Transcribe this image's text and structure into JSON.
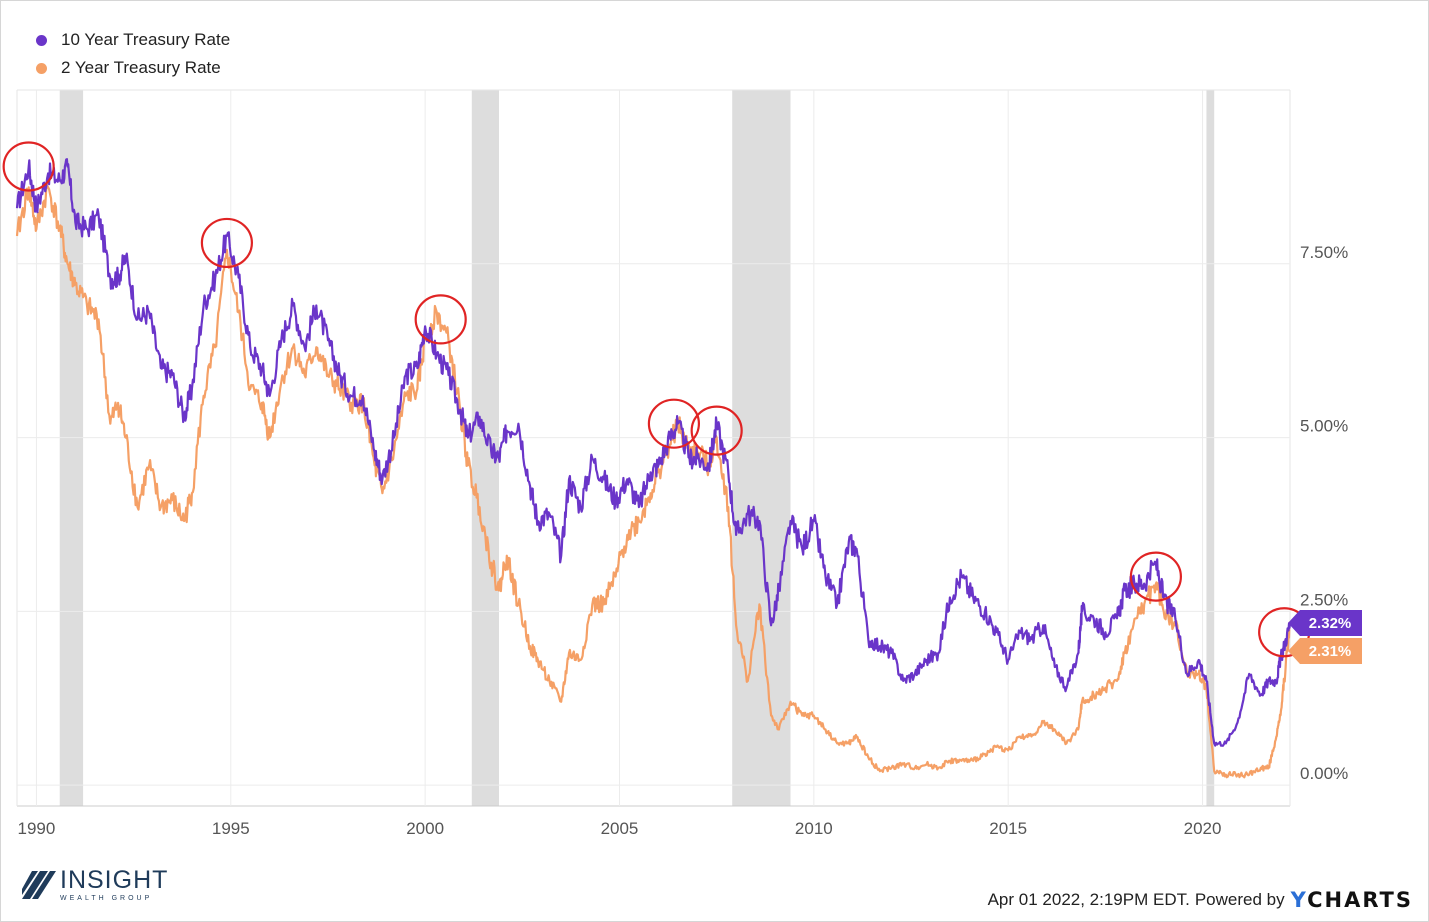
{
  "chart_data": {
    "type": "line",
    "title": "",
    "xlabel": "",
    "ylabel": "",
    "x_range": [
      1989.5,
      2022.25
    ],
    "ylim": [
      -0.3,
      10.0
    ],
    "y_ticks": [
      0,
      2.5,
      5,
      7.5
    ],
    "y_tick_labels": [
      "0.00%",
      "2.50%",
      "5.00%",
      "7.50%"
    ],
    "x_ticks": [
      1990,
      1995,
      2000,
      2005,
      2010,
      2015,
      2020
    ],
    "x_tick_labels": [
      "1990",
      "1995",
      "2000",
      "2005",
      "2010",
      "2015",
      "2020"
    ],
    "grid": true,
    "legend_position": "top-left",
    "recessions": [
      [
        1990.6,
        1991.2
      ],
      [
        2001.2,
        2001.9
      ],
      [
        2007.9,
        2009.4
      ],
      [
        2020.1,
        2020.3
      ]
    ],
    "series": [
      {
        "name": "10 Year Treasury Rate",
        "color": "#6a35c9",
        "last_label": "2.32%",
        "points": [
          [
            1989.5,
            8.3
          ],
          [
            1989.8,
            8.9
          ],
          [
            1990.0,
            8.3
          ],
          [
            1990.3,
            8.8
          ],
          [
            1990.6,
            8.7
          ],
          [
            1990.8,
            8.9
          ],
          [
            1991.0,
            8.1
          ],
          [
            1991.3,
            8.0
          ],
          [
            1991.6,
            8.2
          ],
          [
            1991.9,
            7.3
          ],
          [
            1992.1,
            7.3
          ],
          [
            1992.3,
            7.6
          ],
          [
            1992.6,
            6.7
          ],
          [
            1992.9,
            6.8
          ],
          [
            1993.2,
            6.0
          ],
          [
            1993.5,
            5.9
          ],
          [
            1993.8,
            5.3
          ],
          [
            1994.0,
            5.7
          ],
          [
            1994.3,
            6.9
          ],
          [
            1994.6,
            7.3
          ],
          [
            1994.9,
            7.9
          ],
          [
            1995.2,
            7.3
          ],
          [
            1995.5,
            6.3
          ],
          [
            1995.8,
            6.0
          ],
          [
            1996.0,
            5.6
          ],
          [
            1996.3,
            6.4
          ],
          [
            1996.6,
            6.9
          ],
          [
            1996.9,
            6.3
          ],
          [
            1997.2,
            6.9
          ],
          [
            1997.5,
            6.4
          ],
          [
            1997.8,
            5.9
          ],
          [
            1998.1,
            5.6
          ],
          [
            1998.4,
            5.6
          ],
          [
            1998.7,
            4.8
          ],
          [
            1998.9,
            4.4
          ],
          [
            1999.2,
            5.0
          ],
          [
            1999.5,
            5.9
          ],
          [
            1999.8,
            6.0
          ],
          [
            2000.0,
            6.6
          ],
          [
            2000.3,
            6.2
          ],
          [
            2000.6,
            5.9
          ],
          [
            2000.9,
            5.4
          ],
          [
            2001.1,
            5.0
          ],
          [
            2001.4,
            5.3
          ],
          [
            2001.7,
            4.8
          ],
          [
            2001.9,
            4.7
          ],
          [
            2002.1,
            5.1
          ],
          [
            2002.4,
            5.2
          ],
          [
            2002.7,
            4.3
          ],
          [
            2002.9,
            3.8
          ],
          [
            2003.2,
            3.9
          ],
          [
            2003.5,
            3.3
          ],
          [
            2003.7,
            4.4
          ],
          [
            2004.0,
            4.0
          ],
          [
            2004.3,
            4.7
          ],
          [
            2004.6,
            4.4
          ],
          [
            2004.9,
            4.1
          ],
          [
            2005.2,
            4.4
          ],
          [
            2005.5,
            4.0
          ],
          [
            2005.8,
            4.5
          ],
          [
            2006.0,
            4.6
          ],
          [
            2006.3,
            5.0
          ],
          [
            2006.5,
            5.2
          ],
          [
            2006.8,
            4.7
          ],
          [
            2007.0,
            4.7
          ],
          [
            2007.3,
            4.6
          ],
          [
            2007.5,
            5.2
          ],
          [
            2007.8,
            4.5
          ],
          [
            2008.0,
            3.6
          ],
          [
            2008.3,
            3.9
          ],
          [
            2008.6,
            3.8
          ],
          [
            2008.9,
            2.3
          ],
          [
            2009.1,
            2.8
          ],
          [
            2009.4,
            3.8
          ],
          [
            2009.7,
            3.4
          ],
          [
            2010.0,
            3.8
          ],
          [
            2010.3,
            3.0
          ],
          [
            2010.6,
            2.6
          ],
          [
            2010.9,
            3.5
          ],
          [
            2011.1,
            3.4
          ],
          [
            2011.4,
            2.1
          ],
          [
            2011.7,
            2.0
          ],
          [
            2012.0,
            1.9
          ],
          [
            2012.3,
            1.5
          ],
          [
            2012.6,
            1.6
          ],
          [
            2012.9,
            1.8
          ],
          [
            2013.2,
            1.9
          ],
          [
            2013.5,
            2.7
          ],
          [
            2013.8,
            3.0
          ],
          [
            2014.1,
            2.7
          ],
          [
            2014.4,
            2.5
          ],
          [
            2014.7,
            2.2
          ],
          [
            2015.0,
            1.8
          ],
          [
            2015.3,
            2.2
          ],
          [
            2015.6,
            2.1
          ],
          [
            2015.9,
            2.3
          ],
          [
            2016.2,
            1.7
          ],
          [
            2016.5,
            1.4
          ],
          [
            2016.8,
            1.9
          ],
          [
            2016.9,
            2.5
          ],
          [
            2017.2,
            2.4
          ],
          [
            2017.5,
            2.2
          ],
          [
            2017.8,
            2.4
          ],
          [
            2018.0,
            2.8
          ],
          [
            2018.3,
            2.9
          ],
          [
            2018.5,
            2.9
          ],
          [
            2018.8,
            3.2
          ],
          [
            2019.0,
            2.7
          ],
          [
            2019.3,
            2.4
          ],
          [
            2019.6,
            1.6
          ],
          [
            2019.9,
            1.8
          ],
          [
            2020.1,
            1.5
          ],
          [
            2020.3,
            0.6
          ],
          [
            2020.6,
            0.6
          ],
          [
            2020.9,
            0.9
          ],
          [
            2021.2,
            1.6
          ],
          [
            2021.5,
            1.3
          ],
          [
            2021.7,
            1.5
          ],
          [
            2021.9,
            1.5
          ],
          [
            2022.0,
            1.8
          ],
          [
            2022.1,
            2.0
          ],
          [
            2022.25,
            2.32
          ]
        ]
      },
      {
        "name": "2 Year Treasury Rate",
        "color": "#f5a066",
        "last_label": "2.31%",
        "points": [
          [
            1989.5,
            7.9
          ],
          [
            1989.8,
            8.6
          ],
          [
            1990.0,
            8.0
          ],
          [
            1990.3,
            8.6
          ],
          [
            1990.6,
            8.0
          ],
          [
            1990.8,
            7.5
          ],
          [
            1991.0,
            7.2
          ],
          [
            1991.3,
            6.9
          ],
          [
            1991.6,
            6.7
          ],
          [
            1991.9,
            5.2
          ],
          [
            1992.1,
            5.5
          ],
          [
            1992.3,
            5.0
          ],
          [
            1992.6,
            4.0
          ],
          [
            1992.9,
            4.6
          ],
          [
            1993.2,
            4.0
          ],
          [
            1993.5,
            4.1
          ],
          [
            1993.8,
            3.8
          ],
          [
            1994.0,
            4.2
          ],
          [
            1994.3,
            5.6
          ],
          [
            1994.6,
            6.3
          ],
          [
            1994.9,
            7.7
          ],
          [
            1995.2,
            6.8
          ],
          [
            1995.5,
            5.7
          ],
          [
            1995.8,
            5.5
          ],
          [
            1996.0,
            5.0
          ],
          [
            1996.3,
            5.8
          ],
          [
            1996.6,
            6.3
          ],
          [
            1996.9,
            5.9
          ],
          [
            1997.2,
            6.3
          ],
          [
            1997.5,
            5.9
          ],
          [
            1997.8,
            5.7
          ],
          [
            1998.1,
            5.5
          ],
          [
            1998.4,
            5.5
          ],
          [
            1998.7,
            4.6
          ],
          [
            1998.9,
            4.2
          ],
          [
            1999.2,
            4.8
          ],
          [
            1999.5,
            5.6
          ],
          [
            1999.8,
            5.7
          ],
          [
            2000.0,
            6.4
          ],
          [
            2000.3,
            6.8
          ],
          [
            2000.6,
            6.4
          ],
          [
            2000.9,
            5.4
          ],
          [
            2001.1,
            4.6
          ],
          [
            2001.4,
            4.0
          ],
          [
            2001.7,
            3.2
          ],
          [
            2001.9,
            2.8
          ],
          [
            2002.1,
            3.3
          ],
          [
            2002.4,
            2.6
          ],
          [
            2002.7,
            2.0
          ],
          [
            2002.9,
            1.8
          ],
          [
            2003.2,
            1.5
          ],
          [
            2003.5,
            1.2
          ],
          [
            2003.7,
            1.9
          ],
          [
            2004.0,
            1.8
          ],
          [
            2004.3,
            2.6
          ],
          [
            2004.6,
            2.6
          ],
          [
            2004.9,
            3.0
          ],
          [
            2005.2,
            3.6
          ],
          [
            2005.5,
            3.8
          ],
          [
            2005.8,
            4.2
          ],
          [
            2006.0,
            4.5
          ],
          [
            2006.3,
            4.9
          ],
          [
            2006.5,
            5.2
          ],
          [
            2006.8,
            4.8
          ],
          [
            2007.0,
            4.8
          ],
          [
            2007.3,
            4.6
          ],
          [
            2007.5,
            5.0
          ],
          [
            2007.8,
            4.0
          ],
          [
            2008.0,
            2.3
          ],
          [
            2008.3,
            1.5
          ],
          [
            2008.6,
            2.6
          ],
          [
            2008.9,
            1.0
          ],
          [
            2009.1,
            0.8
          ],
          [
            2009.4,
            1.2
          ],
          [
            2009.7,
            1.0
          ],
          [
            2010.0,
            1.0
          ],
          [
            2010.3,
            0.8
          ],
          [
            2010.6,
            0.6
          ],
          [
            2010.9,
            0.6
          ],
          [
            2011.1,
            0.7
          ],
          [
            2011.4,
            0.4
          ],
          [
            2011.7,
            0.2
          ],
          [
            2012.0,
            0.25
          ],
          [
            2012.3,
            0.3
          ],
          [
            2012.6,
            0.25
          ],
          [
            2012.9,
            0.3
          ],
          [
            2013.2,
            0.25
          ],
          [
            2013.5,
            0.35
          ],
          [
            2013.8,
            0.35
          ],
          [
            2014.1,
            0.35
          ],
          [
            2014.4,
            0.45
          ],
          [
            2014.7,
            0.55
          ],
          [
            2015.0,
            0.5
          ],
          [
            2015.3,
            0.7
          ],
          [
            2015.6,
            0.7
          ],
          [
            2015.9,
            0.9
          ],
          [
            2016.2,
            0.8
          ],
          [
            2016.5,
            0.6
          ],
          [
            2016.8,
            0.8
          ],
          [
            2016.9,
            1.2
          ],
          [
            2017.2,
            1.3
          ],
          [
            2017.5,
            1.4
          ],
          [
            2017.8,
            1.5
          ],
          [
            2018.0,
            1.9
          ],
          [
            2018.3,
            2.4
          ],
          [
            2018.5,
            2.6
          ],
          [
            2018.8,
            2.9
          ],
          [
            2019.0,
            2.5
          ],
          [
            2019.3,
            2.3
          ],
          [
            2019.6,
            1.6
          ],
          [
            2019.9,
            1.6
          ],
          [
            2020.1,
            1.4
          ],
          [
            2020.3,
            0.2
          ],
          [
            2020.6,
            0.15
          ],
          [
            2020.9,
            0.15
          ],
          [
            2021.2,
            0.15
          ],
          [
            2021.5,
            0.25
          ],
          [
            2021.7,
            0.25
          ],
          [
            2021.9,
            0.7
          ],
          [
            2022.0,
            1.0
          ],
          [
            2022.1,
            1.5
          ],
          [
            2022.25,
            2.31
          ]
        ]
      }
    ],
    "highlight_circles": [
      [
        1989.8,
        8.9
      ],
      [
        1994.9,
        7.8
      ],
      [
        2000.4,
        6.7
      ],
      [
        2006.4,
        5.2
      ],
      [
        2007.5,
        5.1
      ],
      [
        2018.8,
        3.0
      ],
      [
        2022.1,
        2.2
      ]
    ]
  },
  "footer": {
    "timestamp": "Apr 01 2022, 2:19PM EDT.",
    "powered_by": "Powered by",
    "ycharts_y": "Y",
    "ycharts_rest": "CHARTS"
  },
  "logo": {
    "name": "INSIGHT",
    "sub": "WEALTH GROUP"
  }
}
